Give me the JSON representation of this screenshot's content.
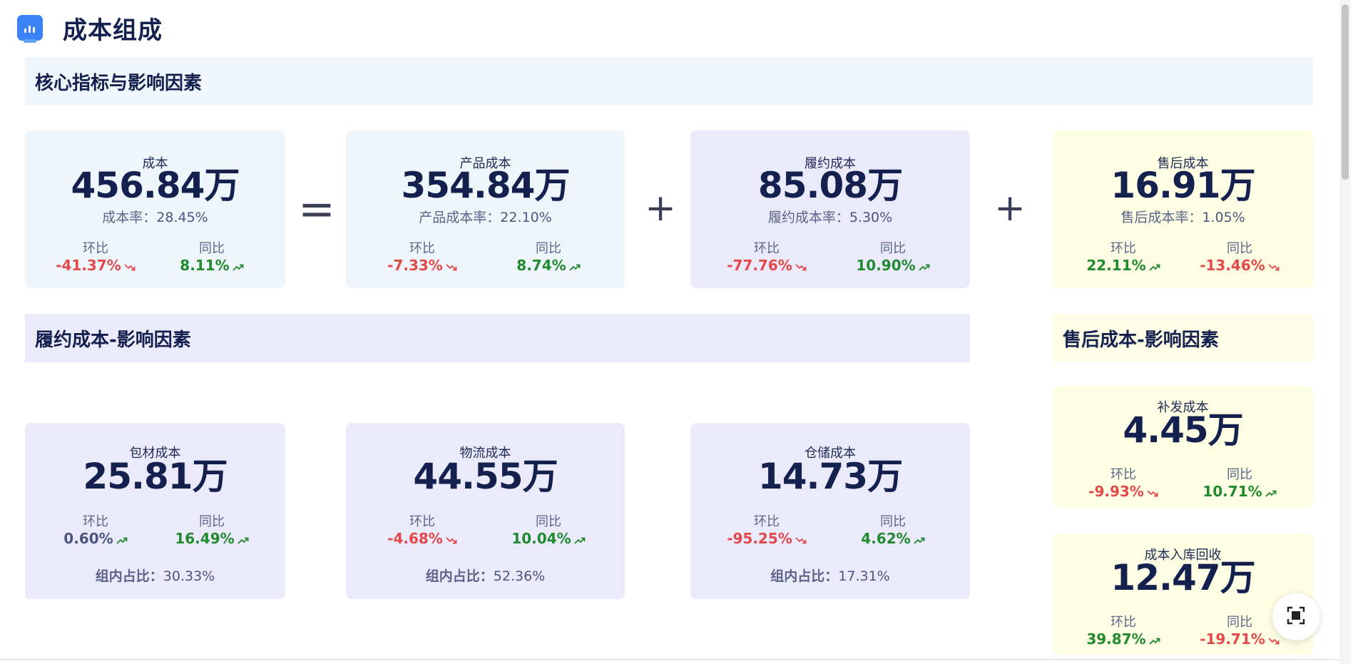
{
  "header": {
    "title": "成本组成",
    "icon": "bar-chart-icon"
  },
  "sections": {
    "core": "核心指标与影响因素",
    "fulfillment": "履约成本-影响因素",
    "aftersales": "售后成本-影响因素"
  },
  "operators": {
    "equals": "=",
    "plus": "+"
  },
  "labels": {
    "mom": "环比",
    "yoy": "同比"
  },
  "cards": {
    "cost": {
      "name": "成本",
      "value": "456.84万",
      "rate_label": "成本率：",
      "rate_value": "28.45%",
      "mom": "-41.37%",
      "mom_trend": "down",
      "yoy": "8.11%",
      "yoy_trend": "up"
    },
    "product": {
      "name": "产品成本",
      "value": "354.84万",
      "rate_label": "产品成本率：",
      "rate_value": "22.10%",
      "mom": "-7.33%",
      "mom_trend": "down",
      "yoy": "8.74%",
      "yoy_trend": "up"
    },
    "fulfillment": {
      "name": "履约成本",
      "value": "85.08万",
      "rate_label": "履约成本率：",
      "rate_value": "5.30%",
      "mom": "-77.76%",
      "mom_trend": "down",
      "yoy": "10.90%",
      "yoy_trend": "up"
    },
    "aftersales": {
      "name": "售后成本",
      "value": "16.91万",
      "rate_label": "售后成本率：",
      "rate_value": "1.05%",
      "mom": "22.11%",
      "mom_trend": "up",
      "yoy": "-13.46%",
      "yoy_trend": "down"
    },
    "packaging": {
      "name": "包材成本",
      "value": "25.81万",
      "mom": "0.60%",
      "mom_trend": "up",
      "yoy": "16.49%",
      "yoy_trend": "up",
      "share_label": "组内占比：",
      "share_value": "30.33%"
    },
    "logistics": {
      "name": "物流成本",
      "value": "44.55万",
      "mom": "-4.68%",
      "mom_trend": "down",
      "yoy": "10.04%",
      "yoy_trend": "up",
      "share_label": "组内占比：",
      "share_value": "52.36%"
    },
    "warehouse": {
      "name": "仓储成本",
      "value": "14.73万",
      "mom": "-95.25%",
      "mom_trend": "down",
      "yoy": "4.62%",
      "yoy_trend": "up",
      "share_label": "组内占比：",
      "share_value": "17.31%"
    },
    "reship": {
      "name": "补发成本",
      "value": "4.45万",
      "mom": "-9.93%",
      "mom_trend": "down",
      "yoy": "10.71%",
      "yoy_trend": "up"
    },
    "recovery": {
      "name": "成本入库回收",
      "value": "12.47万",
      "mom": "39.87%",
      "mom_trend": "up",
      "yoy": "-19.71%",
      "yoy_trend": "down"
    }
  },
  "colors": {
    "positive": "#1f8a2e",
    "negative": "#e54848",
    "neutral": "#4a5580",
    "blue_card": "#eef6fc",
    "purple_card": "#ebeafa",
    "yellow_card": "#fefee4"
  },
  "fab": {
    "icon": "fullscreen-icon"
  }
}
